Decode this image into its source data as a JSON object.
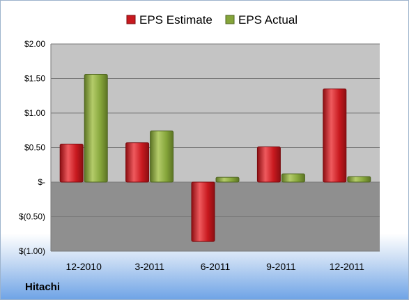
{
  "company_label": "Hitachi",
  "colors": {
    "estimate": "#c8191f",
    "actual": "#85a53a",
    "plot_positive_bg": "#c4c4c4",
    "plot_negative_bg": "#8f8f8f"
  },
  "chart_data": {
    "type": "bar",
    "categories": [
      "12-2010",
      "3-2011",
      "6-2011",
      "9-2011",
      "12-2011"
    ],
    "series": [
      {
        "name": "EPS Estimate",
        "values": [
          0.55,
          0.57,
          -0.86,
          0.51,
          1.35
        ]
      },
      {
        "name": "EPS Actual",
        "values": [
          1.56,
          0.74,
          0.07,
          0.12,
          0.08
        ]
      }
    ],
    "ylim": [
      -1.0,
      2.0
    ],
    "yticks": [
      {
        "value": 2.0,
        "label": "$2.00"
      },
      {
        "value": 1.5,
        "label": "$1.50"
      },
      {
        "value": 1.0,
        "label": "$1.00"
      },
      {
        "value": 0.5,
        "label": "$0.50"
      },
      {
        "value": 0.0,
        "label": "$-"
      },
      {
        "value": -0.5,
        "label": "$(0.50)"
      },
      {
        "value": -1.0,
        "label": "$(1.00)"
      }
    ],
    "legend_position": "top-center",
    "grid": true
  }
}
